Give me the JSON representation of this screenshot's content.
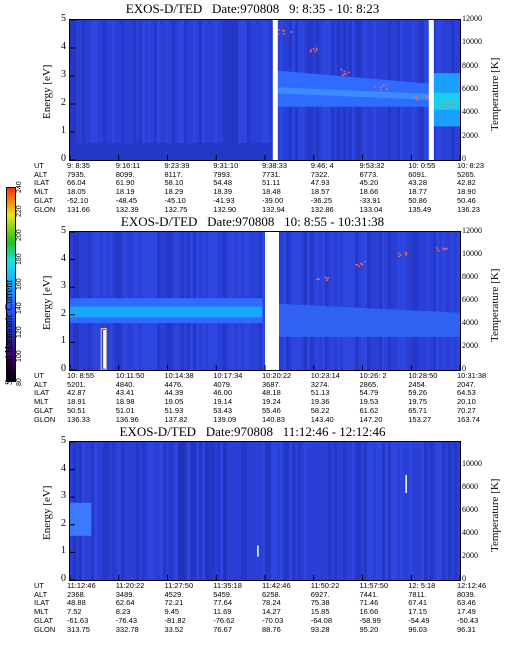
{
  "colorbar": {
    "label": "Second Harmonic Current",
    "ticks": [
      "80",
      "100",
      "120",
      "140",
      "160",
      "180",
      "200",
      "220",
      "240"
    ],
    "colors": [
      "#000000",
      "#3a0060",
      "#1f2fb0",
      "#2d58ff",
      "#19a7ff",
      "#17e4e0",
      "#22c022",
      "#e8e818",
      "#ff3010"
    ]
  },
  "panels": [
    {
      "title": "EXOS-D/TED   Date:970808   9: 8:35 - 10: 8:23",
      "ylabel": "Energy [eV]",
      "rlabel": "Temperature [K]",
      "yticks": [
        "0",
        "1",
        "2",
        "3",
        "4",
        "5"
      ],
      "rticks": [
        "0",
        "2000",
        "4000",
        "6000",
        "8000",
        "10000",
        "12000"
      ],
      "orbit": {
        "labels": [
          "UT",
          "ALT",
          "ILAT",
          "MLT",
          "GLAT",
          "GLON"
        ],
        "rows": [
          [
            "9: 8:35",
            "9:16:11",
            "9:23:39",
            "9:31:10",
            "9:38:33",
            "9:46: 4",
            "9:53:32",
            "10: 0:55",
            "10: 8:23"
          ],
          [
            "7935.",
            "8099.",
            "8117.",
            "7993.",
            "7731.",
            "7322.",
            "6773.",
            "6091.",
            "5265."
          ],
          [
            "66.04",
            "61.90",
            "58.10",
            "54.48",
            "51.11",
            "47.93",
            "45.20",
            "43.28",
            "42.82"
          ],
          [
            "18.05",
            "18.19",
            "18.29",
            "18.39",
            "18.48",
            "18.57",
            "18.66",
            "18.77",
            "18.90"
          ],
          [
            "-52.10",
            "-48.45",
            "-45.10",
            "-41.93",
            "-39.00",
            "-36.25",
            "-33.91",
            "50.86",
            "50.46"
          ],
          [
            "131.66",
            "132.39",
            "132.75",
            "132.90",
            "132.94",
            "132.86",
            "133.04",
            "135.49",
            "136.23"
          ]
        ]
      }
    },
    {
      "title": "EXOS-D/TED   Date:970808   10: 8:55 - 10:31:38",
      "ylabel": "Energy [eV]",
      "rlabel": "Temperature [K]",
      "yticks": [
        "0",
        "1",
        "2",
        "3",
        "4",
        "5"
      ],
      "rticks": [
        "0",
        "2000",
        "4000",
        "6000",
        "8000",
        "10000",
        "12000"
      ],
      "orbit": {
        "labels": [
          "UT",
          "ALT",
          "ILAT",
          "MLT",
          "GLAT",
          "GLON"
        ],
        "rows": [
          [
            "10: 8:55",
            "10:11:50",
            "10:14:38",
            "10:17:34",
            "10:20:22",
            "10:23:14",
            "10:26: 2",
            "10:28:50",
            "10:31:38"
          ],
          [
            "5201.",
            "4840.",
            "4476.",
            "4079.",
            "3687.",
            "3274.",
            "2865.",
            "2454.",
            "2047."
          ],
          [
            "42.87",
            "43.41",
            "44.39",
            "46.00",
            "48.18",
            "51.13",
            "54.79",
            "59.26",
            "64.53"
          ],
          [
            "18.91",
            "18.98",
            "19.05",
            "19.14",
            "19.24",
            "19.36",
            "19.53",
            "19.75",
            "20.10"
          ],
          [
            "50.51",
            "51.01",
            "51.93",
            "53.43",
            "55.46",
            "58.22",
            "61.62",
            "65.71",
            "70.27"
          ],
          [
            "136.33",
            "136.96",
            "137.82",
            "139.09",
            "140.83",
            "143.40",
            "147.20",
            "153.27",
            "163.74"
          ]
        ]
      }
    },
    {
      "title": "EXOS-D/TED   Date:970808   11:12:46 - 12:12:46",
      "ylabel": "Energy [eV]",
      "rlabel": "Temperature [K]",
      "yticks": [
        "0",
        "1",
        "2",
        "3",
        "4",
        "5"
      ],
      "rticks": [
        "0",
        "2000",
        "4000",
        "6000",
        "8000",
        "10000"
      ],
      "orbit": {
        "labels": [
          "UT",
          "ALT",
          "ILAT",
          "MLT",
          "GLAT",
          "GLON"
        ],
        "rows": [
          [
            "11:12:46",
            "11:20:22",
            "11:27:50",
            "11:35:18",
            "11:42:46",
            "11:50:22",
            "11:57:50",
            "12: 5:18",
            "12:12:46"
          ],
          [
            "2368.",
            "3489.",
            "4529.",
            "5459.",
            "6258.",
            "6927.",
            "7441.",
            "7811.",
            "8039."
          ],
          [
            "48.88",
            "62.64",
            "72.21",
            "77.64",
            "78.24",
            "75.38",
            "71.46",
            "67.41",
            "63.46"
          ],
          [
            "7.52",
            "8.23",
            "9.45",
            "11.69",
            "14.27",
            "15.85",
            "16.66",
            "17.15",
            "17.49"
          ],
          [
            "-61.63",
            "-76.43",
            "-81.82",
            "-76.62",
            "-70.03",
            "-64.08",
            "-58.99",
            "-54.49",
            "-50.43"
          ],
          [
            "313.75",
            "332.78",
            "33.52",
            "76.67",
            "88.76",
            "93.28",
            "95.20",
            "96.03",
            "96.31"
          ]
        ]
      }
    }
  ],
  "chart_data": [
    {
      "type": "heatmap",
      "title": "EXOS-D/TED   Date:970808   9: 8:35 - 10: 8:23",
      "ylabel": "Energy [eV]",
      "y2label": "Temperature [K]",
      "ylim": [
        0,
        5
      ],
      "y2lim": [
        0,
        12000
      ],
      "x": [
        "9: 8:35",
        "9:16:11",
        "9:23:39",
        "9:31:10",
        "9:38:33",
        "9:46: 4",
        "9:53:32",
        "10: 0:55",
        "10: 8:23"
      ],
      "data_gaps": [
        0.52,
        0.92
      ],
      "temperature_trace": [
        {
          "t": 0.55,
          "T": 11000
        },
        {
          "t": 0.62,
          "T": 9500
        },
        {
          "t": 0.7,
          "T": 7500
        },
        {
          "t": 0.8,
          "T": 6200
        },
        {
          "t": 0.9,
          "T": 5400
        },
        {
          "t": 0.97,
          "T": 4700
        }
      ],
      "colorbar": {
        "label": "Second Harmonic Current",
        "range": [
          80,
          240
        ]
      }
    },
    {
      "type": "heatmap",
      "title": "EXOS-D/TED   Date:970808   10: 8:55 - 10:31:38",
      "ylabel": "Energy [eV]",
      "y2label": "Temperature [K]",
      "ylim": [
        0,
        5
      ],
      "y2lim": [
        0,
        12000
      ],
      "x": [
        "10: 8:55",
        "10:11:50",
        "10:14:38",
        "10:17:34",
        "10:20:22",
        "10:23:14",
        "10:26: 2",
        "10:28:50",
        "10:31:38"
      ],
      "data_gaps": [
        0.5
      ],
      "temperature_trace": [
        {
          "t": 0.65,
          "T": 8000
        },
        {
          "t": 0.75,
          "T": 9200
        },
        {
          "t": 0.85,
          "T": 10000
        },
        {
          "t": 0.95,
          "T": 10500
        }
      ],
      "colorbar": {
        "label": "Second Harmonic Current",
        "range": [
          80,
          240
        ]
      }
    },
    {
      "type": "heatmap",
      "title": "EXOS-D/TED   Date:970808   11:12:46 - 12:12:46",
      "ylabel": "Energy [eV]",
      "y2label": "Temperature [K]",
      "ylim": [
        0,
        5
      ],
      "y2lim": [
        0,
        12000
      ],
      "x": [
        "11:12:46",
        "11:20:22",
        "11:27:50",
        "11:35:18",
        "11:42:46",
        "11:50:22",
        "11:57:50",
        "12: 5:18",
        "12:12:46"
      ],
      "data_gaps": [],
      "temperature_trace": [],
      "colorbar": {
        "label": "Second Harmonic Current",
        "range": [
          80,
          240
        ]
      }
    }
  ]
}
